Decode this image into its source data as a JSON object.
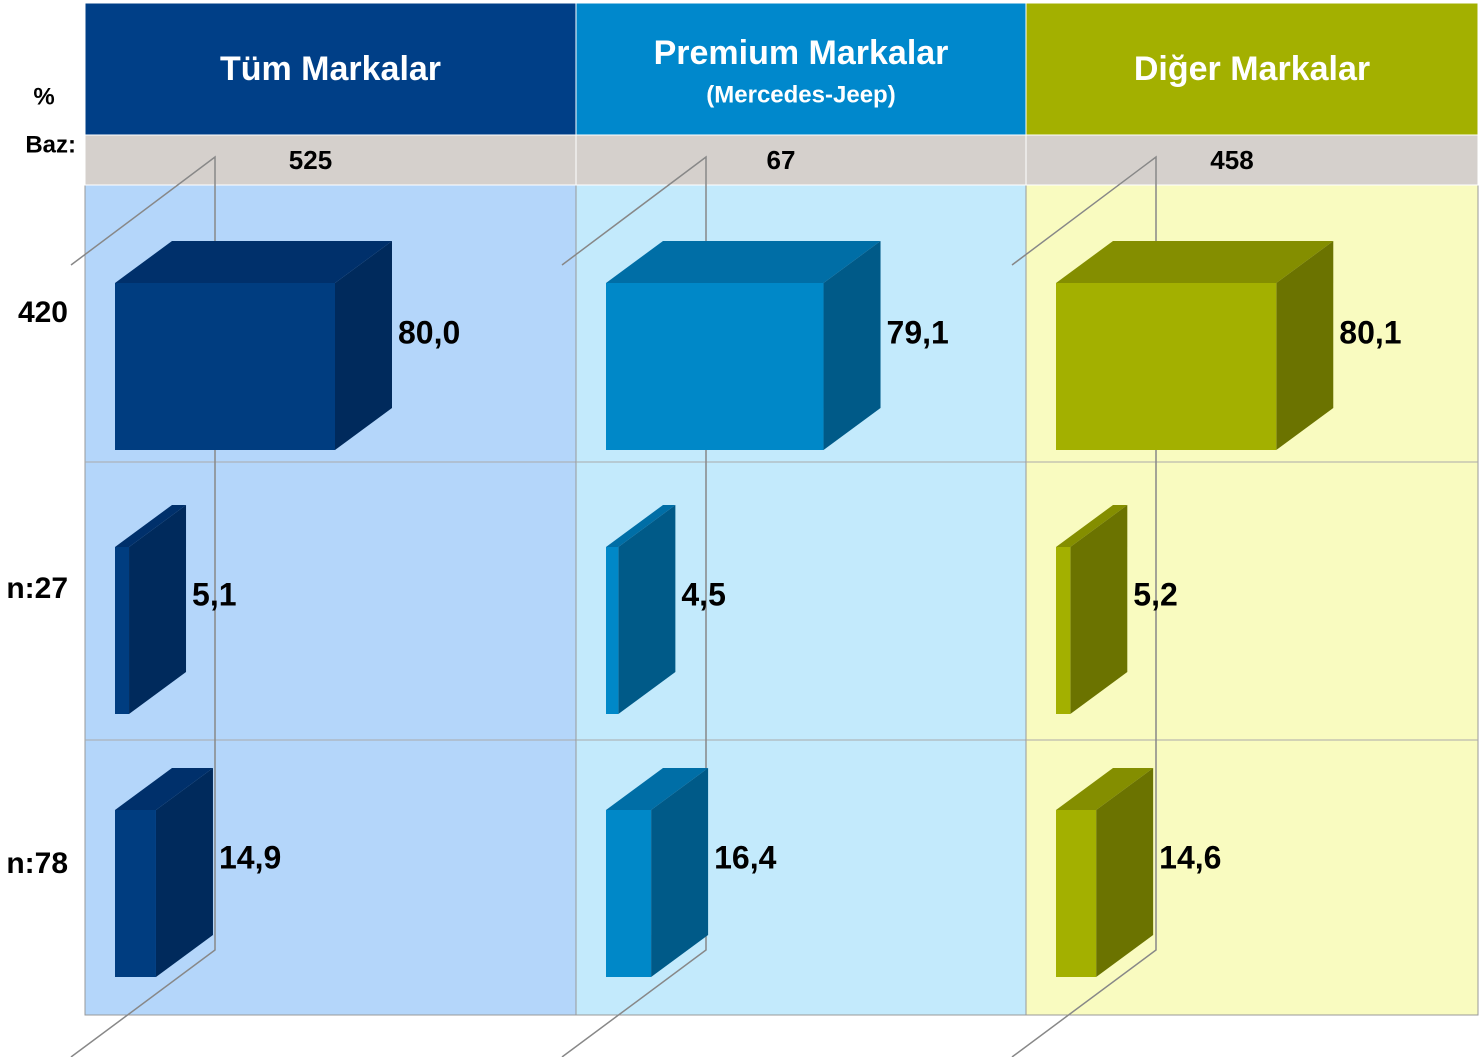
{
  "unit_label": "%",
  "base_label": "Baz:",
  "row_labels": [
    "420",
    "n:27",
    "n:78"
  ],
  "chart_data": [
    {
      "type": "bar",
      "title": "Tüm Markalar",
      "base": 525,
      "header_color": "#003f87",
      "background": "#b4d6fa",
      "color": "#003d80",
      "side_color": "#002a5c",
      "top_color": "#00306b",
      "xlim": [
        0,
        100
      ],
      "values": [
        80.0,
        5.1,
        14.9
      ],
      "value_labels": [
        "80,0",
        "5,1",
        "14,9"
      ]
    },
    {
      "type": "bar",
      "title": "Premium Markalar",
      "subtitle": "(Mercedes-Jeep)",
      "base": 67,
      "header_color": "#0088cc",
      "background": "#c3eafc",
      "color": "#0088c8",
      "side_color": "#005a88",
      "top_color": "#006ea6",
      "xlim": [
        0,
        100
      ],
      "values": [
        79.1,
        4.5,
        16.4
      ],
      "value_labels": [
        "79,1",
        "4,5",
        "16,4"
      ]
    },
    {
      "type": "bar",
      "title": "Diğer Markalar",
      "base": 458,
      "header_color": "#a3b000",
      "background": "#f9fbc0",
      "color": "#a3b000",
      "side_color": "#6b7300",
      "top_color": "#848e00",
      "xlim": [
        0,
        100
      ],
      "values": [
        80.1,
        5.2,
        14.6
      ],
      "value_labels": [
        "80,1",
        "5,2",
        "14,6"
      ]
    }
  ]
}
